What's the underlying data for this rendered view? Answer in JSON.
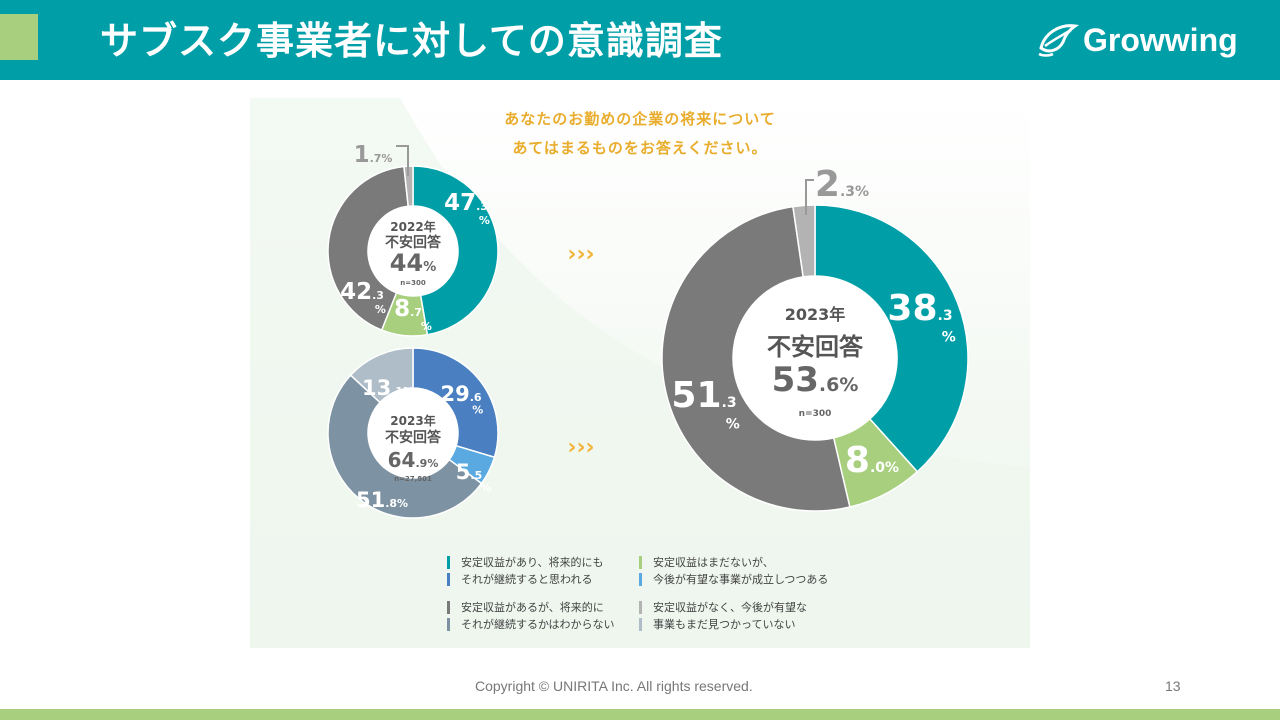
{
  "header": {
    "title": "サブスク事業者に対しての意識調査",
    "logo_text": "Growwing",
    "bg_color": "#009fa8",
    "accent_color": "#a7cf7d"
  },
  "question": {
    "line1": "あなたのお勤めの企業の将来について",
    "line2": "あてはまるものをお答えください。"
  },
  "chart_data": [
    {
      "type": "pie",
      "center": {
        "year": "2022年",
        "label": "不安回答",
        "pct_int": "44",
        "pct_dec": "%",
        "n": "n=300"
      },
      "series": [
        {
          "key": "teal",
          "value": 47.3,
          "int": "47",
          "dec": ".3",
          "pct": "%",
          "color": "#009fa8"
        },
        {
          "key": "green",
          "value": 8.7,
          "int": "8",
          "dec": ".7",
          "pct": "%",
          "color": "#a7cf7d"
        },
        {
          "key": "darkgray",
          "value": 42.3,
          "int": "42",
          "dec": ".3",
          "pct": "%",
          "color": "#7a7a7a"
        },
        {
          "key": "lightgray",
          "value": 1.7,
          "int": "1",
          "dec": ".7%",
          "pct": "",
          "color": "#b3b3b3"
        }
      ]
    },
    {
      "type": "pie",
      "center": {
        "year": "2023年",
        "label": "不安回答",
        "pct_int": "64",
        "pct_dec": ".9%",
        "n": "n=27,801"
      },
      "series": [
        {
          "key": "blue",
          "value": 29.6,
          "int": "29",
          "dec": ".6",
          "pct": "%",
          "color": "#4a7fc1"
        },
        {
          "key": "lightblue",
          "value": 5.5,
          "int": "5",
          "dec": ".5",
          "pct": "%",
          "color": "#5aa9e0"
        },
        {
          "key": "slategray",
          "value": 51.8,
          "int": "51",
          "dec": ".8%",
          "pct": "",
          "color": "#7d93a3"
        },
        {
          "key": "paleslate",
          "value": 13.1,
          "int": "13",
          "dec": ".1%",
          "pct": "",
          "color": "#aebdc8"
        }
      ]
    },
    {
      "type": "pie",
      "center": {
        "year": "2023年",
        "label": "不安回答",
        "pct_int": "53",
        "pct_dec": ".6%",
        "n": "n=300"
      },
      "series": [
        {
          "key": "teal",
          "value": 38.3,
          "int": "38",
          "dec": ".3",
          "pct": "%",
          "color": "#009fa8"
        },
        {
          "key": "green",
          "value": 8.0,
          "int": "8",
          "dec": ".0%",
          "pct": "",
          "color": "#a7cf7d"
        },
        {
          "key": "darkgray",
          "value": 51.3,
          "int": "51",
          "dec": ".3",
          "pct": "%",
          "color": "#7a7a7a"
        },
        {
          "key": "lightgray",
          "value": 2.3,
          "int": "2",
          "dec": ".3%",
          "pct": "",
          "color": "#b3b3b3"
        }
      ]
    }
  ],
  "arrows": "›››",
  "legend": [
    {
      "colors": [
        "#009fa8",
        "#4a7fc1"
      ],
      "line1": "安定収益があり、将来的にも",
      "line2": "それが継続すると思われる"
    },
    {
      "colors": [
        "#a7cf7d",
        "#5aa9e0"
      ],
      "line1": "安定収益はまだないが、",
      "line2": "今後が有望な事業が成立しつつある"
    },
    {
      "colors": [
        "#7a7a7a",
        "#7d93a3"
      ],
      "line1": "安定収益があるが、将来的に",
      "line2": "それが継続するかはわからない"
    },
    {
      "colors": [
        "#b3b3b3",
        "#aebdc8"
      ],
      "line1": "安定収益がなく、今後が有望な",
      "line2": "事業もまだ見つかっていない"
    }
  ],
  "footer": {
    "copyright": "Copyright © UNIRITA Inc. All rights reserved.",
    "page_number": "13"
  }
}
